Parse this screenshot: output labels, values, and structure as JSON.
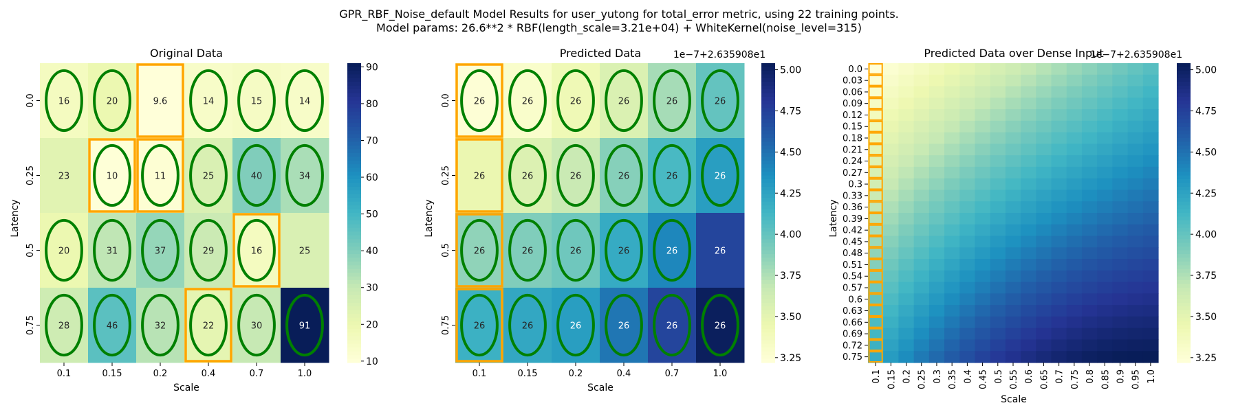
{
  "figure": {
    "suptitle_line1": "GPR_RBF_Noise_default Model Results for user_yutong for total_error metric, using 22 training points.",
    "suptitle_line2": "Model params: 26.6**2 * RBF(length_scale=3.21e+04) + WhiteKernel(noise_level=315)"
  },
  "colors": {
    "ellipse": "#008000",
    "highlight_box": "#FFA500",
    "colormap": "YlGnBu"
  },
  "chart_data": [
    {
      "type": "heatmap",
      "title": "Original Data",
      "xlabel": "Scale",
      "ylabel": "Latency",
      "x_categories": [
        "0.1",
        "0.15",
        "0.2",
        "0.4",
        "0.7",
        "1.0"
      ],
      "y_categories": [
        "0.0",
        "0.25",
        "0.5",
        "0.75"
      ],
      "values": [
        [
          16,
          20,
          9.6,
          14,
          15,
          14
        ],
        [
          23,
          10,
          11,
          25,
          40,
          34
        ],
        [
          20,
          31,
          37,
          29,
          16,
          25
        ],
        [
          28,
          46,
          32,
          22,
          30,
          91
        ]
      ],
      "labels": [
        [
          "16",
          "20",
          "9.6",
          "14",
          "15",
          "14"
        ],
        [
          "23",
          "10",
          "11",
          "25",
          "40",
          "34"
        ],
        [
          "20",
          "31",
          "37",
          "29",
          "16",
          "25"
        ],
        [
          "28",
          "46",
          "32",
          "22",
          "30",
          "91"
        ]
      ],
      "ellipses": [
        [
          1,
          1,
          0,
          1,
          1,
          1
        ],
        [
          0,
          1,
          1,
          1,
          1,
          1
        ],
        [
          1,
          1,
          1,
          1,
          1,
          0
        ],
        [
          1,
          1,
          1,
          1,
          1,
          1
        ]
      ],
      "boxes": [
        [
          0,
          2
        ],
        [
          1,
          1
        ],
        [
          1,
          2
        ],
        [
          2,
          4
        ],
        [
          3,
          3
        ]
      ],
      "colorbar": {
        "min": 9.6,
        "max": 91,
        "ticks": [
          "10",
          "20",
          "30",
          "40",
          "50",
          "60",
          "70",
          "80",
          "90"
        ],
        "tick_values": [
          10,
          20,
          30,
          40,
          50,
          60,
          70,
          80,
          90
        ]
      }
    },
    {
      "type": "heatmap",
      "title": "Predicted Data",
      "xlabel": "Scale",
      "ylabel": "Latency",
      "x_categories": [
        "0.1",
        "0.15",
        "0.2",
        "0.4",
        "0.7",
        "1.0"
      ],
      "y_categories": [
        "0.0",
        "0.25",
        "0.5",
        "0.75"
      ],
      "values": [
        [
          3.24,
          3.3,
          3.42,
          3.56,
          3.78,
          4.0
        ],
        [
          3.46,
          3.55,
          3.66,
          3.88,
          4.1,
          4.28
        ],
        [
          3.85,
          3.9,
          3.96,
          4.2,
          4.4,
          4.72
        ],
        [
          4.16,
          4.22,
          4.28,
          4.48,
          4.72,
          5.02
        ]
      ],
      "labels": [
        [
          "26",
          "26",
          "26",
          "26",
          "26",
          "26"
        ],
        [
          "26",
          "26",
          "26",
          "26",
          "26",
          "26"
        ],
        [
          "26",
          "26",
          "26",
          "26",
          "26",
          "26"
        ],
        [
          "26",
          "26",
          "26",
          "26",
          "26",
          "26"
        ]
      ],
      "ellipses": [
        [
          1,
          1,
          1,
          1,
          1,
          1
        ],
        [
          0,
          1,
          1,
          1,
          1,
          1
        ],
        [
          1,
          1,
          1,
          1,
          1,
          0
        ],
        [
          1,
          1,
          1,
          1,
          1,
          1
        ]
      ],
      "boxes": [
        [
          0,
          0
        ],
        [
          1,
          0
        ],
        [
          2,
          0
        ],
        [
          3,
          0
        ]
      ],
      "colorbar": {
        "min": 3.22,
        "max": 5.04,
        "ticks": [
          "3.25",
          "3.50",
          "3.75",
          "4.00",
          "4.25",
          "4.50",
          "4.75",
          "5.00"
        ],
        "tick_values": [
          3.25,
          3.5,
          3.75,
          4.0,
          4.25,
          4.5,
          4.75,
          5.0
        ],
        "offset_text": "1e−7+2.635908e1"
      }
    },
    {
      "type": "heatmap",
      "title": "Predicted Data over Dense Input",
      "xlabel": "Scale",
      "ylabel": "Latency",
      "x_categories": [
        "0.1",
        "0.15",
        "0.2",
        "0.25",
        "0.3",
        "0.35",
        "0.4",
        "0.45",
        "0.5",
        "0.55",
        "0.6",
        "0.65",
        "0.7",
        "0.75",
        "0.8",
        "0.85",
        "0.9",
        "0.95",
        "1.0"
      ],
      "y_categories": [
        "0.0",
        "0.03",
        "0.06",
        "0.09",
        "0.12",
        "0.15",
        "0.18",
        "0.21",
        "0.24",
        "0.27",
        "0.3",
        "0.33",
        "0.36",
        "0.39",
        "0.42",
        "0.45",
        "0.48",
        "0.51",
        "0.54",
        "0.57",
        "0.6",
        "0.63",
        "0.66",
        "0.69",
        "0.72",
        "0.75"
      ],
      "gradient": {
        "top_left": 3.22,
        "top_right": 4.05,
        "bottom_left": 4.2,
        "bottom_right": 5.04,
        "interior_max": 4.55
      },
      "boxed_column": "0.1",
      "colorbar": {
        "min": 3.22,
        "max": 5.04,
        "ticks": [
          "3.25",
          "3.50",
          "3.75",
          "4.00",
          "4.25",
          "4.50",
          "4.75",
          "5.00"
        ],
        "tick_values": [
          3.25,
          3.5,
          3.75,
          4.0,
          4.25,
          4.5,
          4.75,
          5.0
        ],
        "offset_text": "1e−7+2.635908e1"
      }
    }
  ]
}
